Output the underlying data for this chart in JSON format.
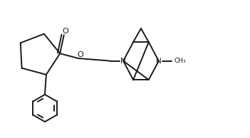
{
  "bg_color": "#ffffff",
  "line_color": "#1a1a1a",
  "line_width": 1.4,
  "fig_width": 3.51,
  "fig_height": 1.94,
  "dpi": 100,
  "xlim": [
    0,
    9.5
  ],
  "ylim": [
    0,
    5.0
  ]
}
